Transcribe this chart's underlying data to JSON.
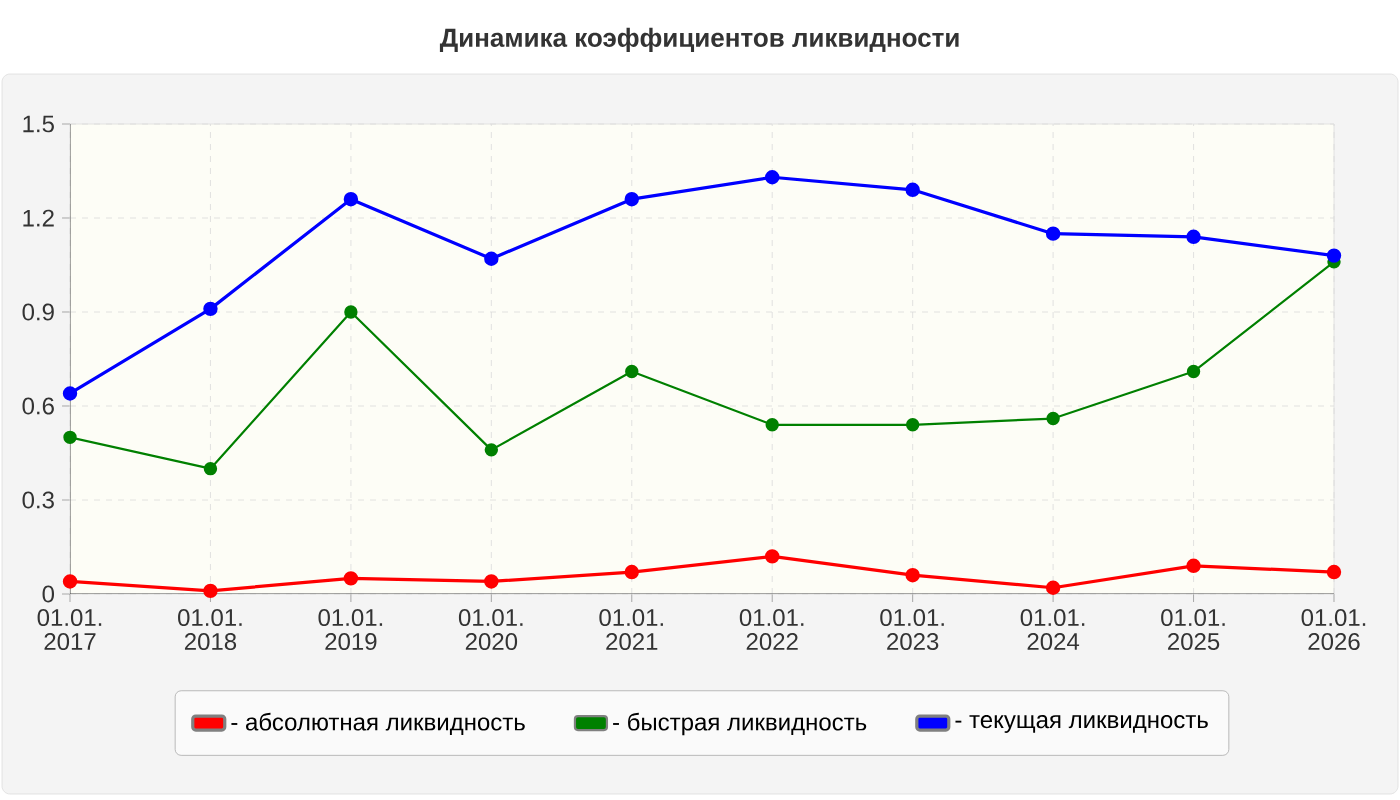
{
  "chart_data": {
    "type": "line",
    "title": "Динамика коэффициентов ликвидности",
    "categories": [
      "01.01. 2017",
      "01.01. 2018",
      "01.01. 2019",
      "01.01. 2020",
      "01.01. 2021",
      "01.01. 2022",
      "01.01. 2023",
      "01.01. 2024",
      "01.01. 2025",
      "01.01. 2026"
    ],
    "series": [
      {
        "name": "- абсолютная ликвидность",
        "color": "#ff0000",
        "values": [
          0.04,
          0.01,
          0.05,
          0.04,
          0.07,
          0.12,
          0.06,
          0.02,
          0.09,
          0.07
        ]
      },
      {
        "name": "- быстрая ликвидность",
        "color": "#008000",
        "values": [
          0.5,
          0.4,
          0.9,
          0.46,
          0.71,
          0.54,
          0.54,
          0.56,
          0.71,
          1.06
        ]
      },
      {
        "name": "- текущая ликвидность",
        "color": "#0000ff",
        "values": [
          0.64,
          0.91,
          1.26,
          1.07,
          1.26,
          1.33,
          1.29,
          1.15,
          1.14,
          1.08
        ]
      }
    ],
    "ylim": [
      0,
      1.5
    ],
    "yticks": [
      0,
      0.3,
      0.6,
      0.9,
      1.2,
      1.5
    ],
    "grid": true,
    "legend": "bottom",
    "marker": "circle",
    "line_style": "solid"
  }
}
